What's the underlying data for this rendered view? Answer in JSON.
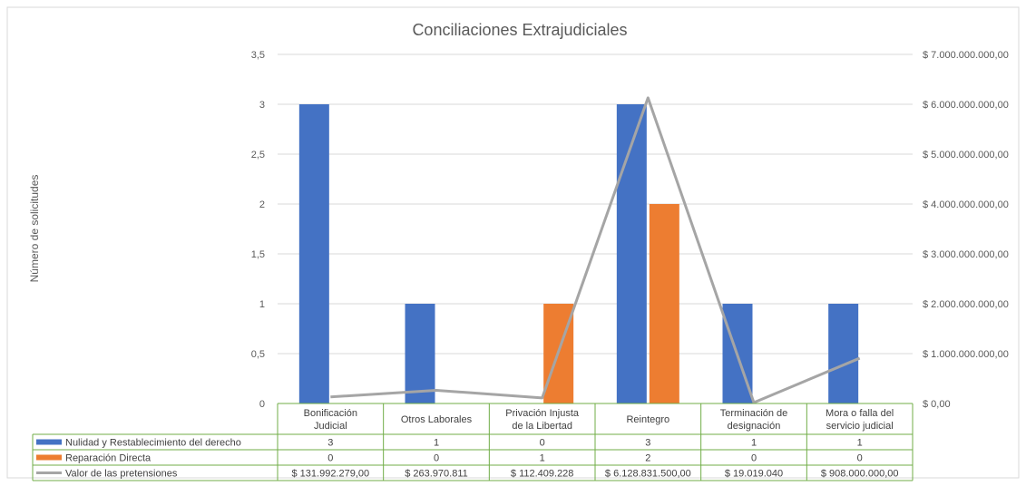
{
  "chart_data": {
    "type": "bar",
    "title": "Conciliaciones Extrajudiciales",
    "ylabel": "Número de solicitudes",
    "ylim": [
      0,
      3.5
    ],
    "y2lim": [
      0,
      7000000000
    ],
    "yticks": [
      "0",
      "0,5",
      "1",
      "1,5",
      "2",
      "2,5",
      "3",
      "3,5"
    ],
    "y2ticks": [
      "$ 0,00",
      "$ 1.000.000.000,00",
      "$ 2.000.000.000,00",
      "$ 3.000.000.000,00",
      "$ 4.000.000.000,00",
      "$ 5.000.000.000,00",
      "$ 6.000.000.000,00",
      "$ 7.000.000.000,00"
    ],
    "categories": [
      [
        "Bonificación",
        "Judicial"
      ],
      [
        "Otros Laborales"
      ],
      [
        "Privación Injusta",
        "de la Libertad"
      ],
      [
        "Reintegro"
      ],
      [
        "Terminación de",
        "designación"
      ],
      [
        "Mora o falla del",
        "servicio judicial"
      ]
    ],
    "grid": true,
    "series": [
      {
        "name": "Nulidad y Restablecimiento del derecho",
        "kind": "bar",
        "axis": "left",
        "color": "#4472C4",
        "values": [
          3,
          1,
          0,
          3,
          1,
          1
        ],
        "labels": [
          "3",
          "1",
          "0",
          "3",
          "1",
          "1"
        ]
      },
      {
        "name": "Reparación Directa",
        "kind": "bar",
        "axis": "left",
        "color": "#ED7D31",
        "values": [
          0,
          0,
          1,
          2,
          0,
          0
        ],
        "labels": [
          "0",
          "0",
          "1",
          "2",
          "0",
          "0"
        ]
      },
      {
        "name": "Valor de las pretensiones",
        "kind": "line",
        "axis": "right",
        "color": "#A5A5A5",
        "values": [
          131992279,
          263970811,
          112409228,
          6128831500,
          19019040,
          908000000
        ],
        "labels": [
          "$ 131.992.279,00",
          "$ 263.970.811",
          "$ 112.409.228",
          "$ 6.128.831.500,00",
          "$ 19.019.040",
          "$ 908.000.000,00"
        ]
      }
    ]
  }
}
